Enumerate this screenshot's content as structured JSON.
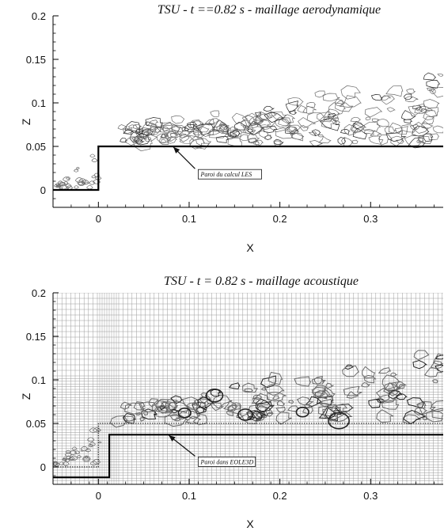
{
  "panels": [
    {
      "title": "TSU - t ==0.82 s - maillage aerodynamique",
      "xlabel": "X",
      "ylabel": "Z",
      "xlim": [
        -0.05,
        0.38
      ],
      "ylim": [
        -0.02,
        0.2
      ],
      "x_ticks": [
        {
          "value": 0,
          "label": "0"
        },
        {
          "value": 0.1,
          "label": "0.1"
        },
        {
          "value": 0.2,
          "label": "0.2"
        },
        {
          "value": 0.3,
          "label": "0.3"
        }
      ],
      "y_ticks": [
        {
          "value": 0,
          "label": "0"
        },
        {
          "value": 0.05,
          "label": "0.05"
        },
        {
          "value": 0.1,
          "label": "0.1"
        },
        {
          "value": 0.15,
          "label": "0.15"
        },
        {
          "value": 0.2,
          "label": "0.2"
        }
      ],
      "wall_profile": [
        [
          -0.05,
          0
        ],
        [
          0,
          0
        ],
        [
          0,
          0.05
        ],
        [
          0.38,
          0.05
        ]
      ],
      "annotation": {
        "text": "Paroi du calcul LES",
        "point": [
          0.08,
          0.052
        ],
        "label_at": [
          0.11,
          0.018
        ]
      },
      "grid": false
    },
    {
      "title": "TSU - t = 0.82 s - maillage acoustique",
      "xlabel": "X",
      "ylabel": "Z",
      "xlim": [
        -0.05,
        0.38
      ],
      "ylim": [
        -0.02,
        0.2
      ],
      "x_ticks": [
        {
          "value": 0,
          "label": "0"
        },
        {
          "value": 0.1,
          "label": "0.1"
        },
        {
          "value": 0.2,
          "label": "0.2"
        },
        {
          "value": 0.3,
          "label": "0.3"
        }
      ],
      "y_ticks": [
        {
          "value": 0,
          "label": "0"
        },
        {
          "value": 0.05,
          "label": "0.05"
        },
        {
          "value": 0.1,
          "label": "0.1"
        },
        {
          "value": 0.15,
          "label": "0.15"
        },
        {
          "value": 0.2,
          "label": "0.2"
        }
      ],
      "wall_profile": [
        [
          -0.05,
          -0.012
        ],
        [
          0.012,
          -0.012
        ],
        [
          0.012,
          0.037
        ],
        [
          0.38,
          0.037
        ]
      ],
      "les_wall_profile": [
        [
          -0.05,
          0
        ],
        [
          0,
          0
        ],
        [
          0,
          0.05
        ],
        [
          0.38,
          0.05
        ]
      ],
      "annotation": {
        "text": "Paroi dans EOLE3D",
        "point": [
          0.075,
          0.039
        ],
        "label_at": [
          0.11,
          0.006
        ]
      },
      "grid": true
    }
  ],
  "colors": {
    "wall": "#000000",
    "contour": "#6a6a6a",
    "contour_dark": "#222222",
    "mesh": "#9a9a9a"
  }
}
